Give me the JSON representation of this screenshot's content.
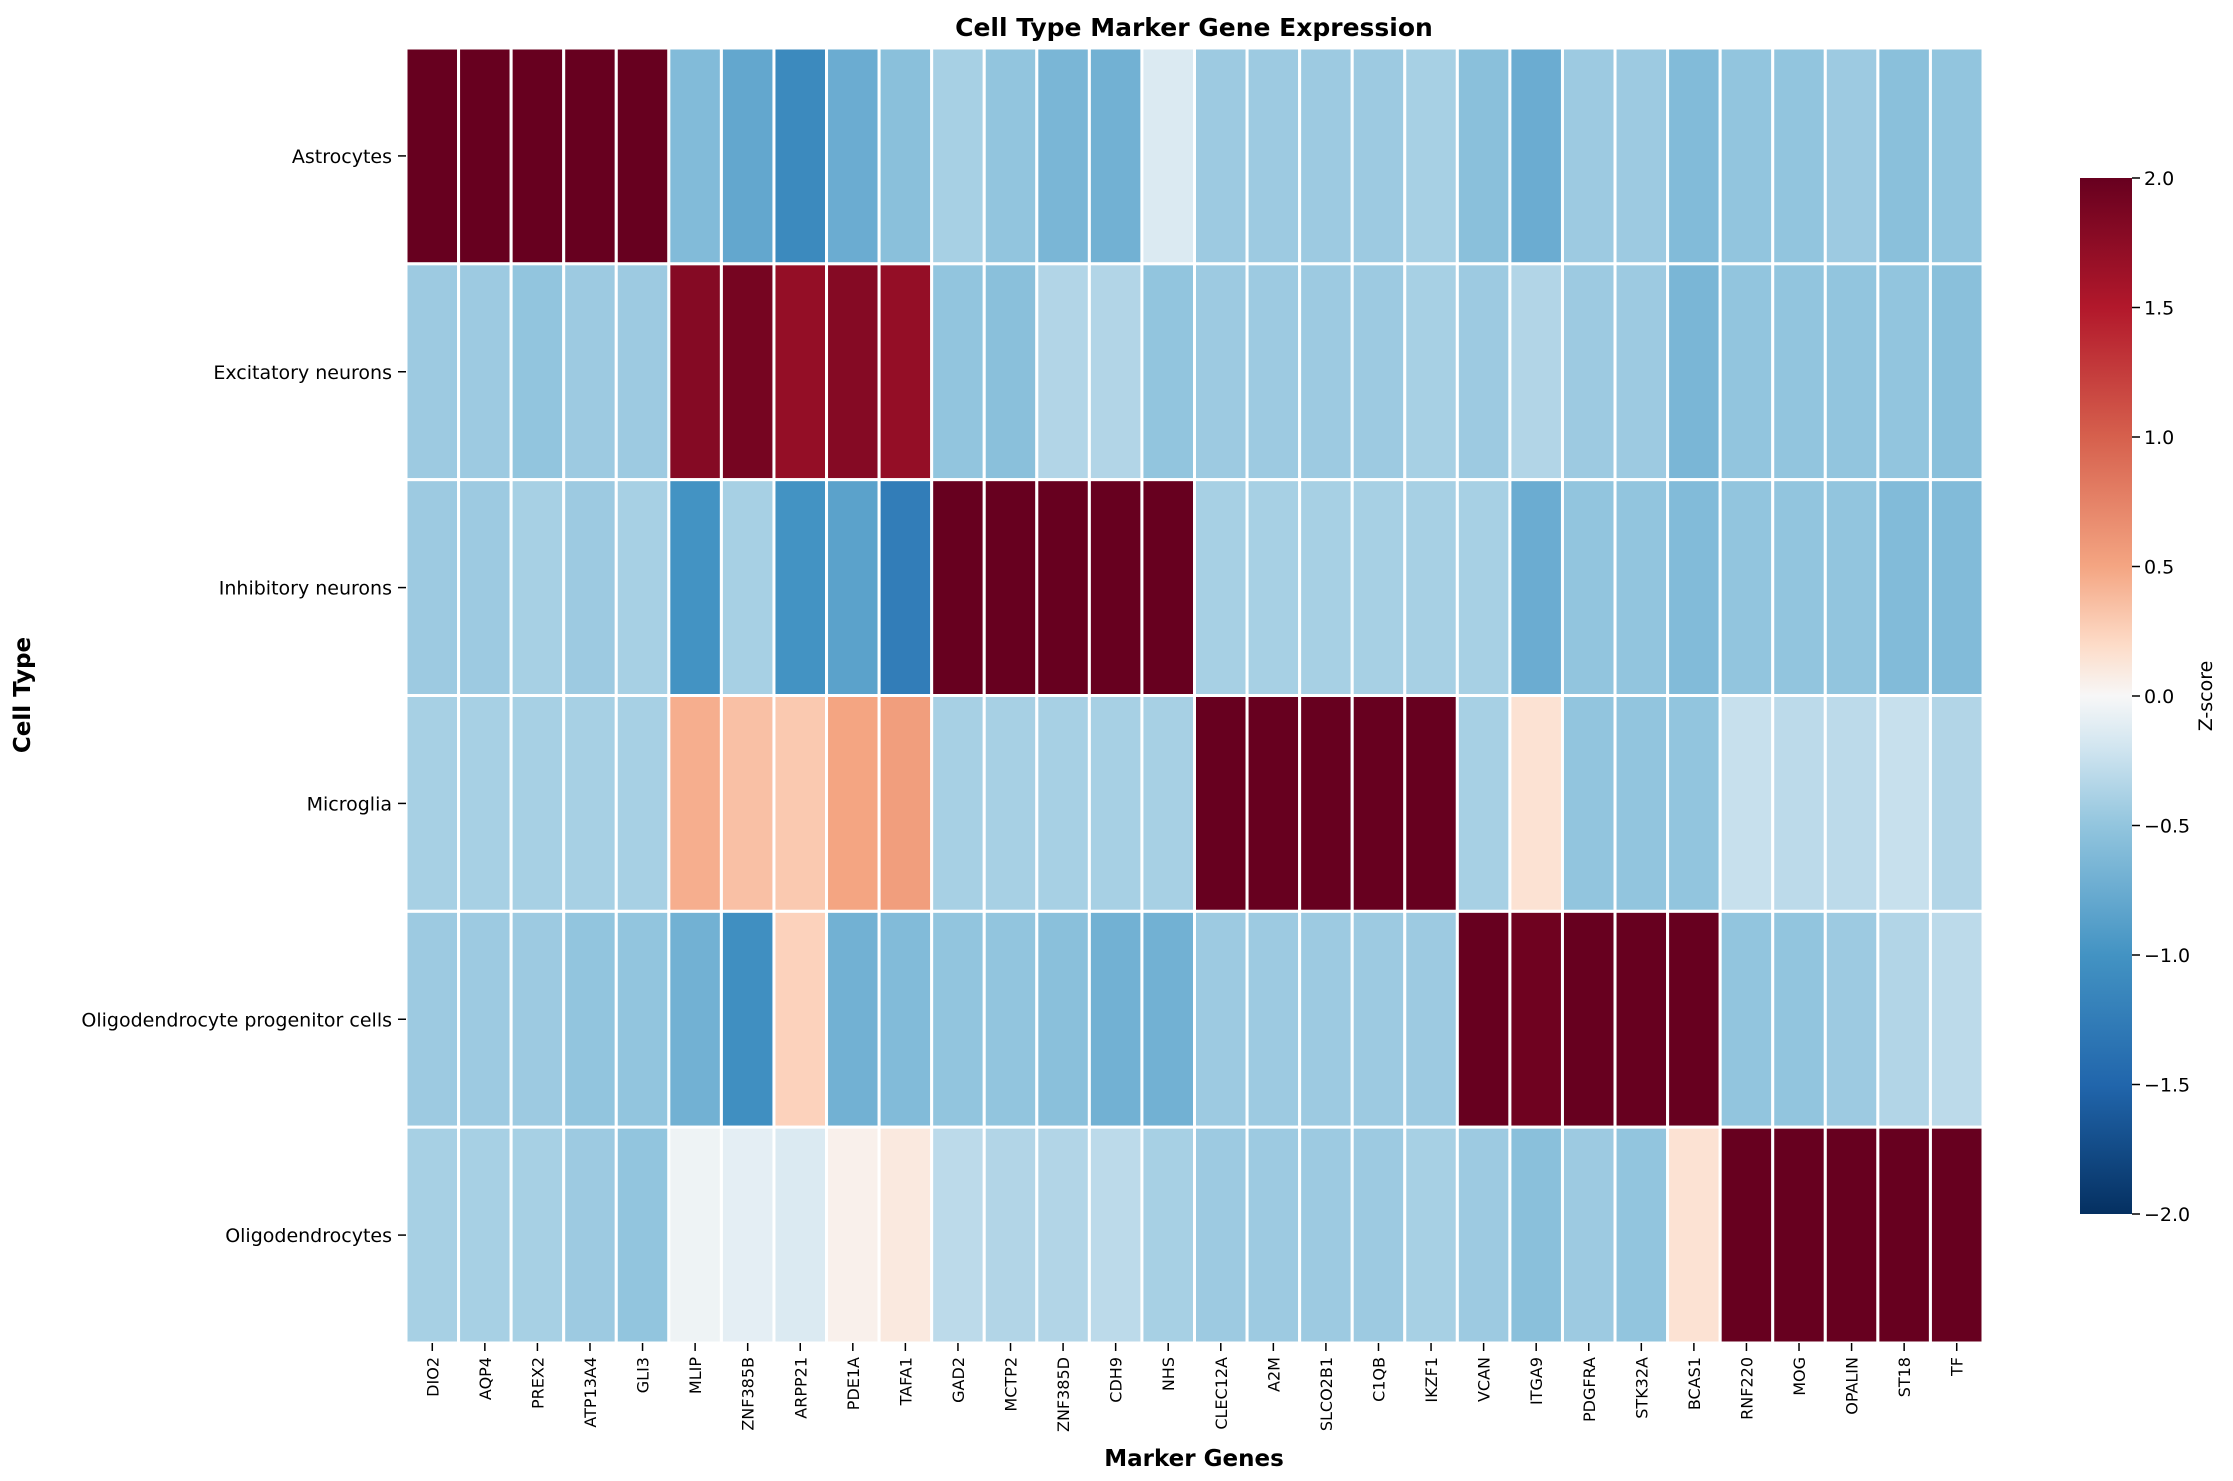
{
  "chart_data": {
    "type": "heatmap",
    "title": "Cell Type Marker Gene Expression",
    "xlabel": "Marker Genes",
    "ylabel": "Cell Type",
    "colorbar_label": "Z-score",
    "colormap": "RdBu_r",
    "vmin": -2.0,
    "vmax": 2.0,
    "colorbar_ticks": [
      "2.0",
      "1.5",
      "1.0",
      "0.5",
      "0.0",
      "−0.5",
      "−1.0",
      "−1.5",
      "−2.0"
    ],
    "colorbar_tick_values": [
      2.0,
      1.5,
      1.0,
      0.5,
      0.0,
      -0.5,
      -1.0,
      -1.5,
      -2.0
    ],
    "rows": [
      "Astrocytes",
      "Excitatory neurons",
      "Inhibitory neurons",
      "Microglia",
      "Oligodendrocyte progenitor cells",
      "Oligodendrocytes"
    ],
    "columns": [
      "DIO2",
      "AQP4",
      "PREX2",
      "ATP13A4",
      "GLI3",
      "MLIP",
      "ZNF385B",
      "ARPP21",
      "PDE1A",
      "TAFA1",
      "GAD2",
      "MCTP2",
      "ZNF385D",
      "CDH9",
      "NHS",
      "CLEC12A",
      "A2M",
      "SLCO2B1",
      "C1QB",
      "IKZF1",
      "VCAN",
      "ITGA9",
      "PDGFRA",
      "STK32A",
      "BCAS1",
      "RNF220",
      "MOG",
      "OPALIN",
      "ST18",
      "TF"
    ],
    "values": [
      [
        2.0,
        2.0,
        2.0,
        2.0,
        2.0,
        -0.6,
        -0.8,
        -1.1,
        -0.75,
        -0.55,
        -0.4,
        -0.5,
        -0.65,
        -0.7,
        -0.15,
        -0.45,
        -0.45,
        -0.45,
        -0.45,
        -0.4,
        -0.55,
        -0.75,
        -0.45,
        -0.45,
        -0.6,
        -0.5,
        -0.5,
        -0.45,
        -0.55,
        -0.5
      ],
      [
        -0.45,
        -0.45,
        -0.5,
        -0.45,
        -0.45,
        1.8,
        1.9,
        1.7,
        1.8,
        1.7,
        -0.5,
        -0.55,
        -0.35,
        -0.35,
        -0.5,
        -0.45,
        -0.45,
        -0.45,
        -0.45,
        -0.4,
        -0.45,
        -0.35,
        -0.45,
        -0.45,
        -0.65,
        -0.5,
        -0.5,
        -0.5,
        -0.5,
        -0.55
      ],
      [
        -0.45,
        -0.45,
        -0.4,
        -0.45,
        -0.4,
        -1.0,
        -0.4,
        -1.0,
        -0.85,
        -1.25,
        2.0,
        2.0,
        2.0,
        2.0,
        2.0,
        -0.4,
        -0.4,
        -0.4,
        -0.4,
        -0.4,
        -0.4,
        -0.75,
        -0.5,
        -0.5,
        -0.6,
        -0.5,
        -0.5,
        -0.5,
        -0.6,
        -0.6
      ],
      [
        -0.4,
        -0.4,
        -0.4,
        -0.4,
        -0.4,
        0.45,
        0.35,
        0.3,
        0.5,
        0.55,
        -0.4,
        -0.4,
        -0.4,
        -0.4,
        -0.4,
        2.0,
        2.0,
        2.0,
        2.0,
        2.0,
        -0.4,
        0.15,
        -0.5,
        -0.5,
        -0.5,
        -0.25,
        -0.3,
        -0.3,
        -0.25,
        -0.35
      ],
      [
        -0.45,
        -0.45,
        -0.45,
        -0.5,
        -0.5,
        -0.7,
        -1.05,
        0.25,
        -0.7,
        -0.6,
        -0.5,
        -0.5,
        -0.55,
        -0.7,
        -0.7,
        -0.45,
        -0.45,
        -0.45,
        -0.45,
        -0.45,
        2.0,
        1.95,
        2.0,
        2.0,
        2.0,
        -0.5,
        -0.5,
        -0.45,
        -0.35,
        -0.3
      ],
      [
        -0.4,
        -0.4,
        -0.4,
        -0.45,
        -0.5,
        -0.05,
        -0.1,
        -0.15,
        0.05,
        0.1,
        -0.3,
        -0.35,
        -0.35,
        -0.3,
        -0.4,
        -0.45,
        -0.45,
        -0.45,
        -0.45,
        -0.4,
        -0.45,
        -0.55,
        -0.45,
        -0.5,
        0.15,
        2.0,
        2.0,
        2.0,
        2.0,
        2.0
      ]
    ]
  }
}
